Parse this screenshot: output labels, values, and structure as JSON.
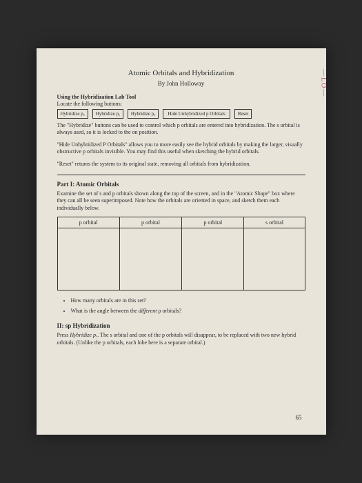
{
  "page_edge_text": "—LO—",
  "title": "Atomic Orbitals and Hybridization",
  "author": "By John Holloway",
  "tool_section": {
    "heading": "Using the Hybridization Lab Tool",
    "locate_text": "Locate the following buttons:",
    "buttons": [
      "Hybridize pₓ",
      "Hybridize pᵧ",
      "Hybridize pᵤ",
      "Hide Unhybridized p Orbitals",
      "Reset"
    ],
    "para1": "The \"Hybridize\" buttons can be used to control which p orbitals are entered into hybridization.",
    "para2": "The s orbital is always used, so it is locked to the on position.",
    "para3": "\"Hide Unhybridized P Orbitals\" allows you to more easily see the hybrid orbitals by making the larger, visually obstructive p orbitals invisible. You may find this useful when sketching the hybrid orbitals.",
    "para4": "\"Reset\" returns the system to its original state, removing all orbitals from hybridization."
  },
  "part1": {
    "title": "Part I: Atomic Orbitals",
    "intro": "Examine the set of s and p orbitals shown along the top of the screen, and in the \"Atomic Shape\" box where they can all be seen superimposed. Note how the orbitals are oriented in space, and sketch them each individually below.",
    "headers": [
      "p orbital",
      "p orbital",
      "p orbital",
      "s orbital"
    ],
    "questions": [
      "How many orbitals are in this set?",
      "What is the angle between the different p orbitals?"
    ]
  },
  "part2": {
    "title": "II: sp Hybridization",
    "press_label": "Press ",
    "press_button": "Hybridize pₓ",
    "text": ". The s orbital and one of the p orbitals will disappear, to be replaced with two new hybrid orbitals. (Unlike the p orbitals, each lobe here is a separate orbital.)"
  },
  "page_number": "65"
}
